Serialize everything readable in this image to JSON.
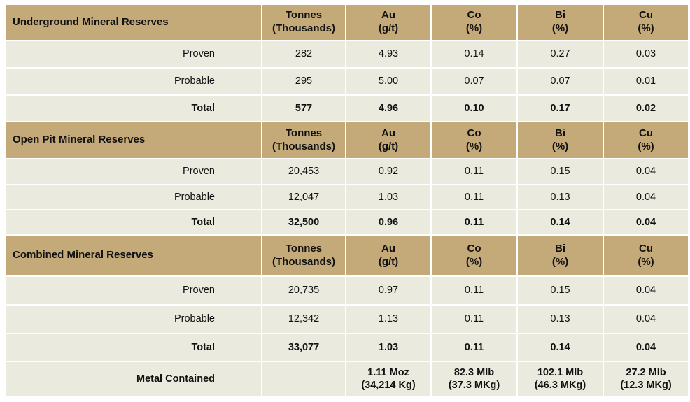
{
  "columns": [
    {
      "name": "Tonnes",
      "unit": "(Thousands)"
    },
    {
      "name": "Au",
      "unit": "(g/t)"
    },
    {
      "name": "Co",
      "unit": "(%)"
    },
    {
      "name": "Bi",
      "unit": "(%)"
    },
    {
      "name": "Cu",
      "unit": "(%)"
    }
  ],
  "sections": [
    {
      "title": "Underground Mineral Reserves",
      "rows": [
        {
          "label": "Proven",
          "values": [
            "282",
            "4.93",
            "0.14",
            "0.27",
            "0.03"
          ]
        },
        {
          "label": "Probable",
          "values": [
            "295",
            "5.00",
            "0.07",
            "0.07",
            "0.01"
          ]
        },
        {
          "label": "Total",
          "values": [
            "577",
            "4.96",
            "0.10",
            "0.17",
            "0.02"
          ]
        }
      ]
    },
    {
      "title": "Open Pit Mineral Reserves",
      "rows": [
        {
          "label": "Proven",
          "values": [
            "20,453",
            "0.92",
            "0.11",
            "0.15",
            "0.04"
          ]
        },
        {
          "label": "Probable",
          "values": [
            "12,047",
            "1.03",
            "0.11",
            "0.13",
            "0.04"
          ]
        },
        {
          "label": "Total",
          "values": [
            "32,500",
            "0.96",
            "0.11",
            "0.14",
            "0.04"
          ]
        }
      ]
    },
    {
      "title": "Combined Mineral Reserves",
      "rows": [
        {
          "label": "Proven",
          "values": [
            "20,735",
            "0.97",
            "0.11",
            "0.15",
            "0.04"
          ]
        },
        {
          "label": "Probable",
          "values": [
            "12,342",
            "1.13",
            "0.11",
            "0.13",
            "0.04"
          ]
        },
        {
          "label": "Total",
          "values": [
            "33,077",
            "1.03",
            "0.11",
            "0.14",
            "0.04"
          ]
        }
      ]
    }
  ],
  "metal_contained": {
    "label": "Metal Contained",
    "values": [
      {
        "line1": "1.11 Moz",
        "line2": "(34,214 Kg)"
      },
      {
        "line1": "82.3 Mlb",
        "line2": "(37.3 MKg)"
      },
      {
        "line1": "102.1 Mlb",
        "line2": "(46.3 MKg)"
      },
      {
        "line1": "27.2 Mlb",
        "line2": "(12.3 MKg)"
      }
    ]
  },
  "colors": {
    "header_bg": "#c4a979",
    "row_bg": "#ebeadf"
  }
}
